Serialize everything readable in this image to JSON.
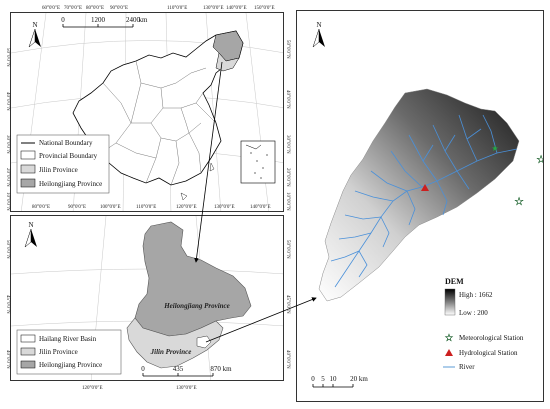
{
  "top_map": {
    "north": "N",
    "scale_ticks": [
      "0",
      "1200",
      "2400"
    ],
    "scale_unit": "km",
    "top_coords": [
      "60°0'0\"E",
      "70°0'0\"E",
      "80°0'0\"E",
      "90°0'0\"E",
      "110°0'0\"E",
      "130°0'0\"E",
      "140°0'0\"E",
      "150°0'0\"E"
    ],
    "mid_coords": [
      "80°0'0\"E",
      "90°0'0\"E",
      "100°0'0\"E",
      "110°0'0\"E",
      "120°0'0\"E",
      "130°0'0\"E",
      "140°0'0\"E"
    ],
    "left_coords": [
      "50°0'0\"N",
      "40°0'0\"N",
      "30°0'0\"N",
      "20°0'0\"N",
      "10°0'0\"N"
    ],
    "right_coords": [
      "50°0'0\"N",
      "40°0'0\"N",
      "30°0'0\"N",
      "20°0'0\"N",
      "10°0'0\"N"
    ],
    "bottom_coords": [
      "80°0'0\"E",
      "90°0'0\"E",
      "100°0'0\"E",
      "120°0'0\"E",
      "130°0'0\"E",
      "140°0'0\"E"
    ],
    "legend": [
      {
        "label": "National Boundary",
        "color": "#000000",
        "type": "line"
      },
      {
        "label": "Provincial Boundary",
        "color": "#ffffff",
        "type": "box"
      },
      {
        "label": "Jilin Province",
        "color": "#d9d9d9",
        "type": "box"
      },
      {
        "label": "Heilongjiang Province",
        "color": "#a6a6a6",
        "type": "box"
      }
    ]
  },
  "bottom_map": {
    "north": "N",
    "top_coords": [
      "120°0'0\"E",
      "130°0'0\"E"
    ],
    "bottom_coords": [
      "120°0'0\"E",
      "130°0'0\"E"
    ],
    "left_coords": [
      "50°0'0\"N",
      "45°0'0\"N",
      "40°0'0\"N"
    ],
    "right_coords": [
      "50°0'0\"N",
      "45°0'0\"N",
      "40°0'0\"N"
    ],
    "heilongjiang_label": "Heilongjiang Province",
    "jilin_label": "Jilin Province",
    "scale_ticks": [
      "0",
      "435",
      "870 km"
    ],
    "legend": [
      {
        "label": "Hailang River Basin",
        "color": "#ffffff"
      },
      {
        "label": "Jilin Province",
        "color": "#d9d9d9"
      },
      {
        "label": "Heilongjiang Province",
        "color": "#a6a6a6"
      }
    ]
  },
  "right_map": {
    "north": "N",
    "dem_title": "DEM",
    "dem_high": "High : 1662",
    "dem_low": "Low : 200",
    "legend": [
      {
        "label": "Meteorological Station",
        "color": "#22aa44",
        "type": "star"
      },
      {
        "label": "Hydrological Station",
        "color": "#cc1f1f",
        "type": "triangle"
      },
      {
        "label": "River",
        "color": "#5b9bd5",
        "type": "line"
      }
    ],
    "scale_ticks": [
      "0",
      "5",
      "10",
      "20 km"
    ],
    "river_color": "#4a90d9"
  }
}
